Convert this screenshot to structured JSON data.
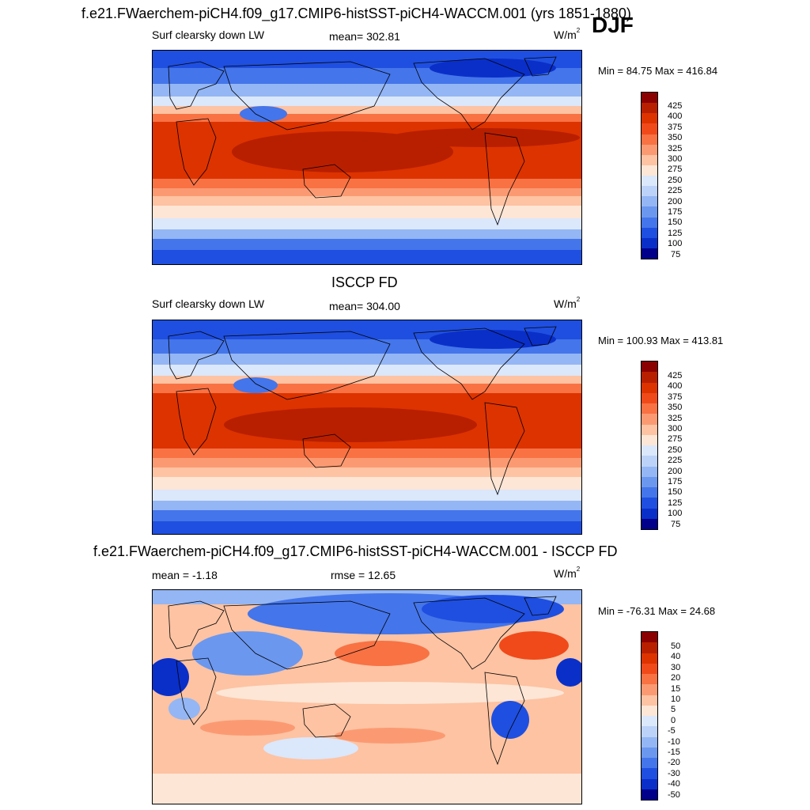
{
  "figure": {
    "main_title": "f.e21.FWaerchem-piCH4.f09_g17.CMIP6-histSST-piCH4-WACCM.001 (yrs 1851-1880)",
    "season": "DJF"
  },
  "panels": [
    {
      "id": "model",
      "variable": "Surf clearsky down LW",
      "stat": "mean= 302.81",
      "units": "W/m",
      "units_sup": "2",
      "minmax": "Min =  84.75 Max = 416.84",
      "colorbar_labels": [
        "425",
        "400",
        "375",
        "350",
        "325",
        "300",
        "275",
        "250",
        "225",
        "200",
        "175",
        "150",
        "125",
        "100",
        "75"
      ],
      "colorbar_colors": [
        "#8b0000",
        "#b81f00",
        "#dd3300",
        "#f04a1a",
        "#f87244",
        "#fb9a72",
        "#fdc3a3",
        "#fde6d6",
        "#dbe7fb",
        "#bcd2f8",
        "#94b6f4",
        "#6b97ef",
        "#4475ea",
        "#1f4fe0",
        "#0a2fc9",
        "#00008b"
      ]
    },
    {
      "id": "obs",
      "title": "ISCCP FD",
      "variable": "Surf clearsky down LW",
      "stat": "mean= 304.00",
      "units": "W/m",
      "units_sup": "2",
      "minmax": "Min = 100.93 Max = 413.81",
      "colorbar_labels": [
        "425",
        "400",
        "375",
        "350",
        "325",
        "300",
        "275",
        "250",
        "225",
        "200",
        "175",
        "150",
        "125",
        "100",
        "75"
      ],
      "colorbar_colors": [
        "#8b0000",
        "#b81f00",
        "#dd3300",
        "#f04a1a",
        "#f87244",
        "#fb9a72",
        "#fdc3a3",
        "#fde6d6",
        "#dbe7fb",
        "#bcd2f8",
        "#94b6f4",
        "#6b97ef",
        "#4475ea",
        "#1f4fe0",
        "#0a2fc9",
        "#00008b"
      ]
    },
    {
      "id": "diff",
      "title": "f.e21.FWaerchem-piCH4.f09_g17.CMIP6-histSST-piCH4-WACCM.001 - ISCCP FD",
      "variable": "mean =  -1.18",
      "stat": "rmse =  12.65",
      "units": "W/m",
      "units_sup": "2",
      "minmax": "Min = -76.31 Max =  24.68",
      "colorbar_labels": [
        "50",
        "40",
        "30",
        "20",
        "15",
        "10",
        "5",
        "0",
        "-5",
        "-10",
        "-15",
        "-20",
        "-30",
        "-40",
        "-50"
      ],
      "colorbar_colors": [
        "#8b0000",
        "#b81f00",
        "#dd3300",
        "#f04a1a",
        "#f87244",
        "#fb9a72",
        "#fdc3a3",
        "#fde6d6",
        "#dbe7fb",
        "#bcd2f8",
        "#94b6f4",
        "#6b97ef",
        "#4475ea",
        "#1f4fe0",
        "#0a2fc9",
        "#00008b"
      ]
    }
  ]
}
